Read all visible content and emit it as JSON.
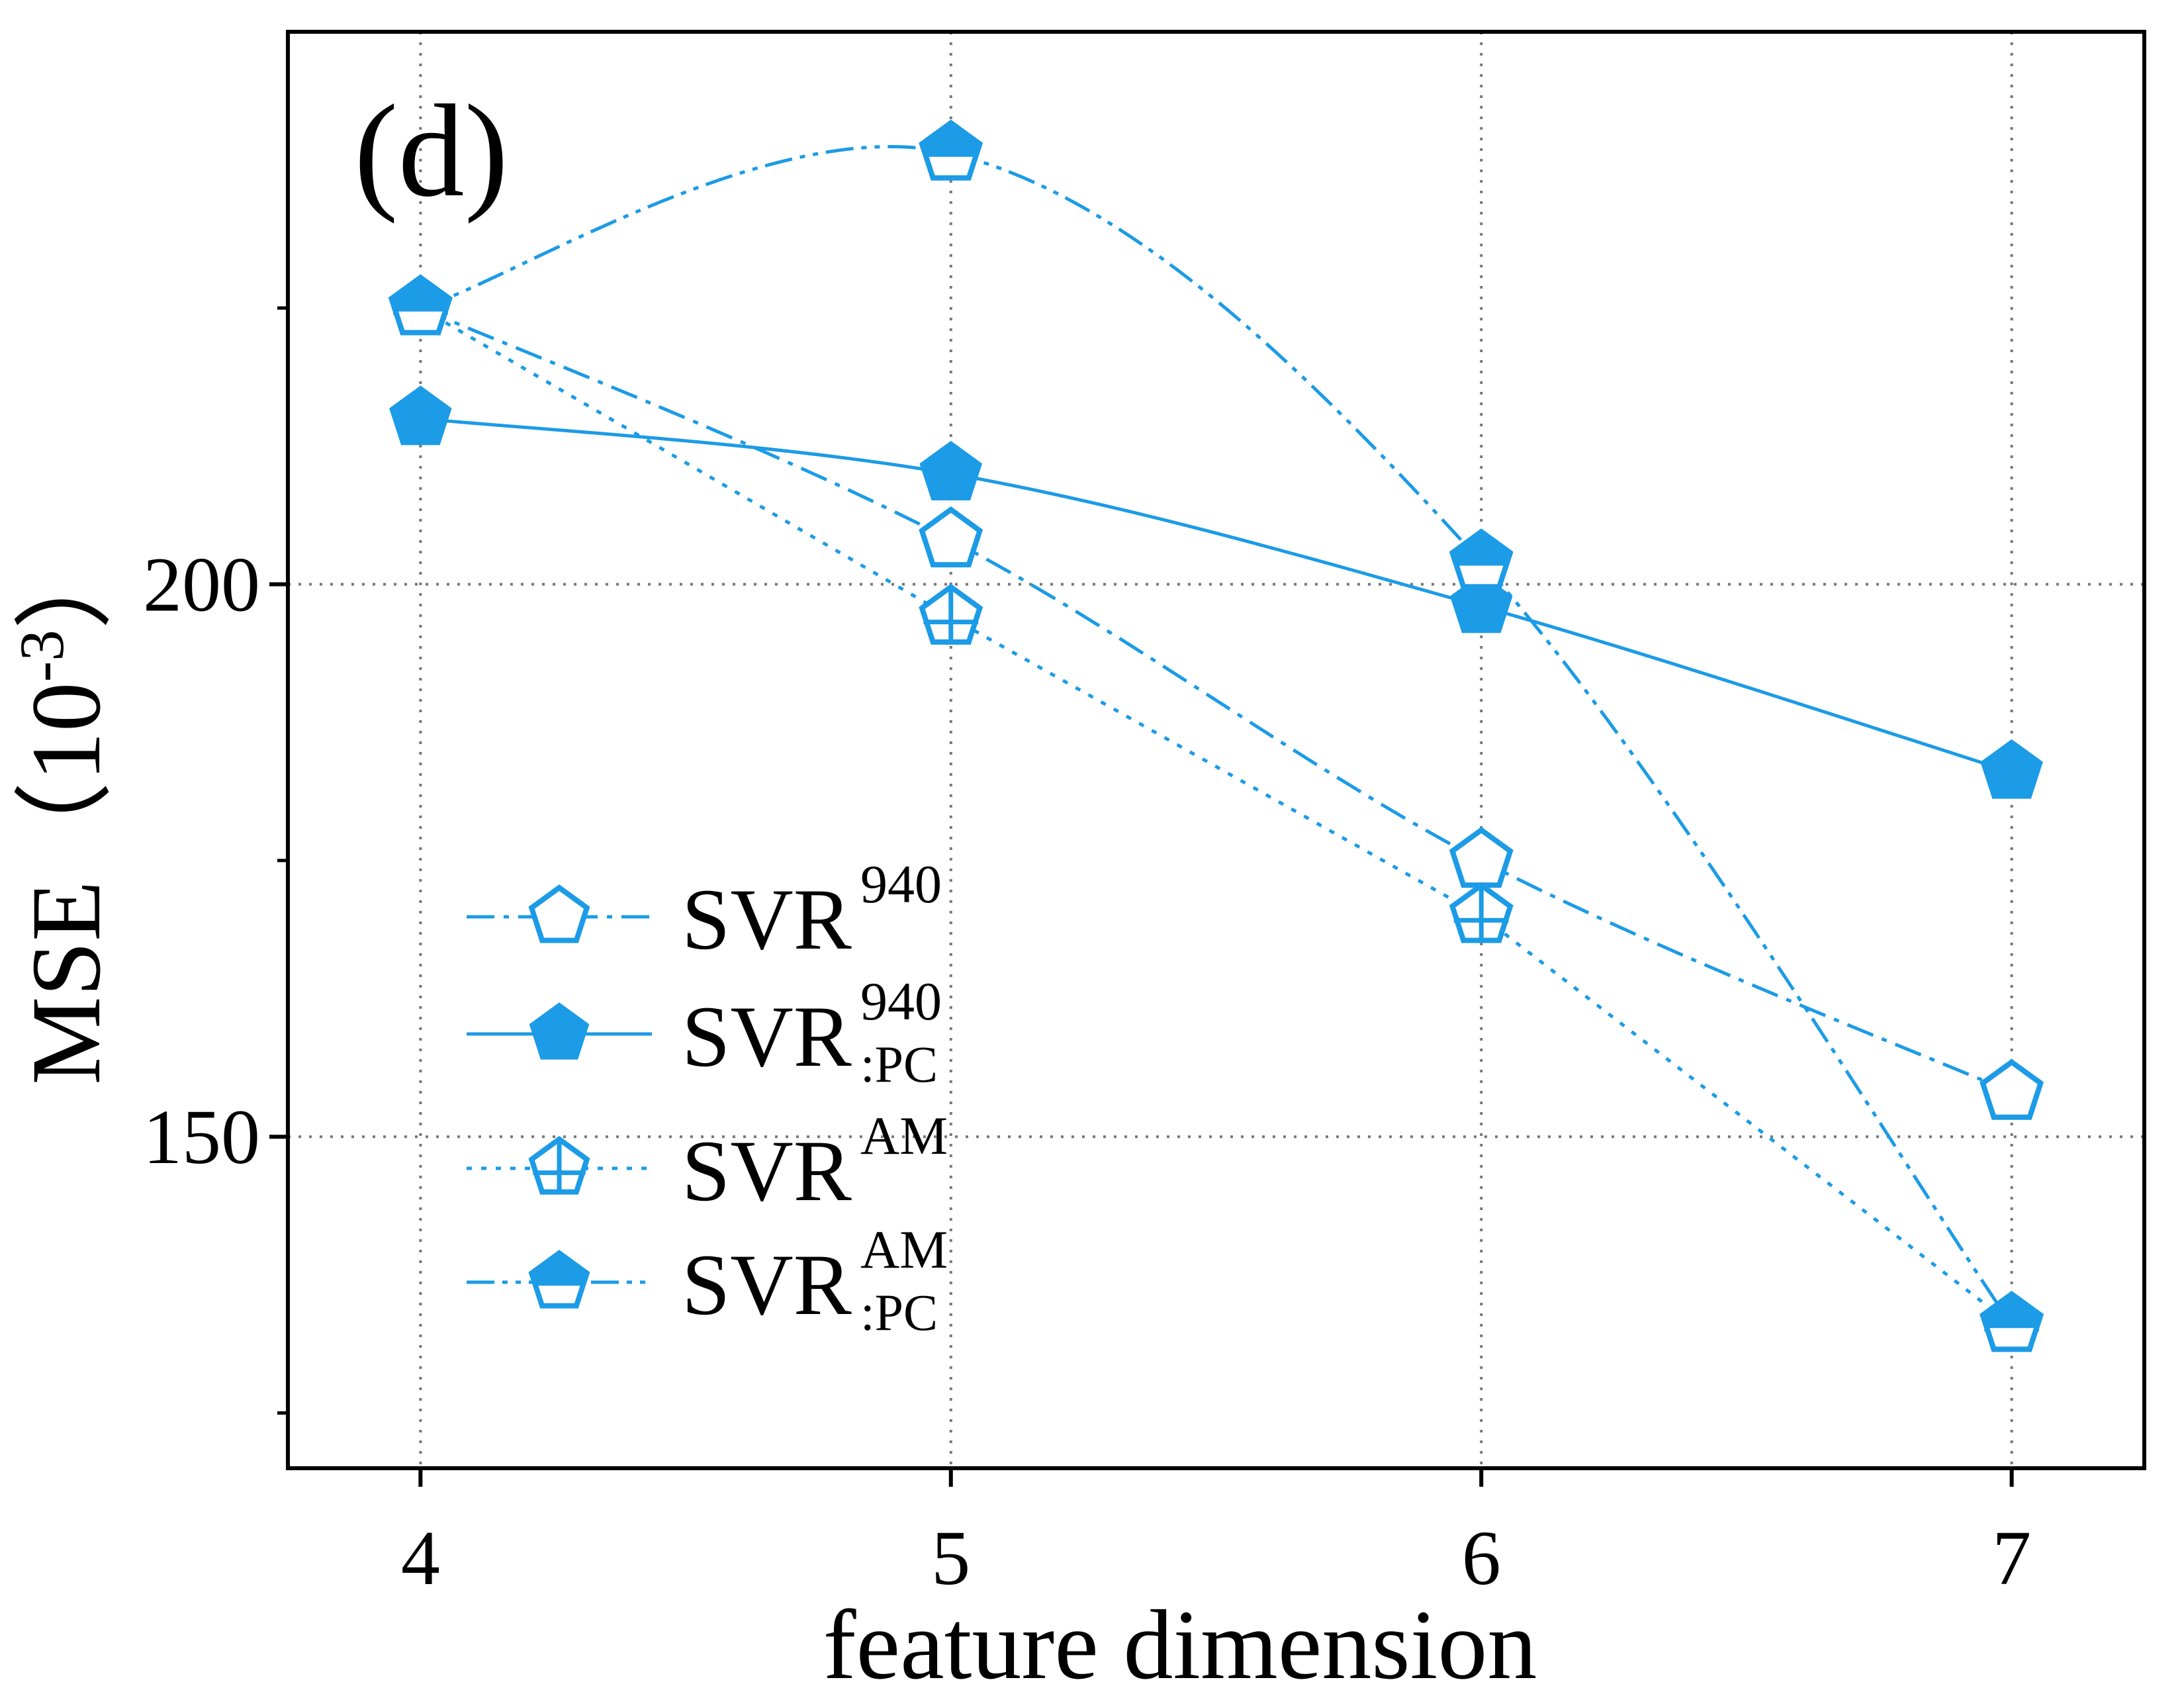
{
  "chart_data": {
    "type": "line",
    "panel_label": "(d)",
    "xlabel": "feature dimension",
    "ylabel": "MSE（10⁻³）",
    "ylabel_parts": {
      "main": "MSE（",
      "base": "10",
      "exp": "-3",
      "close": "）"
    },
    "x": [
      4,
      5,
      6,
      7
    ],
    "x_ticks": [
      "4",
      "5",
      "6",
      "7"
    ],
    "y_ticks": [
      150,
      200
    ],
    "y_tick_labels": [
      "150",
      "200"
    ],
    "y_minor_ticks": [
      125,
      175,
      225
    ],
    "xlim": [
      3.75,
      7.25
    ],
    "ylim": [
      120,
      250
    ],
    "grid": true,
    "legend_position": "lower-left",
    "color": "#1c9be6",
    "series": [
      {
        "name": "SVR",
        "sup": "940",
        "sub": "",
        "values": [
          225,
          204,
          175,
          154
        ],
        "marker": "pentagon-open",
        "line": "dash-dot",
        "smooth": true
      },
      {
        "name": "SVR",
        "sup": "940",
        "sub": ":PC",
        "values": [
          215,
          210,
          198,
          183
        ],
        "marker": "pentagon-filled",
        "line": "solid",
        "smooth": true
      },
      {
        "name": "SVR",
        "sup": "AM",
        "sub": "",
        "values": [
          225,
          197,
          170,
          133
        ],
        "marker": "pentagon-cross",
        "line": "dotted",
        "smooth": false
      },
      {
        "name": "SVR",
        "sup": "AM",
        "sub": ":PC",
        "values": [
          225,
          239,
          202,
          133
        ],
        "marker": "pentagon-half",
        "line": "dash-dot-dot",
        "smooth": true
      }
    ]
  }
}
